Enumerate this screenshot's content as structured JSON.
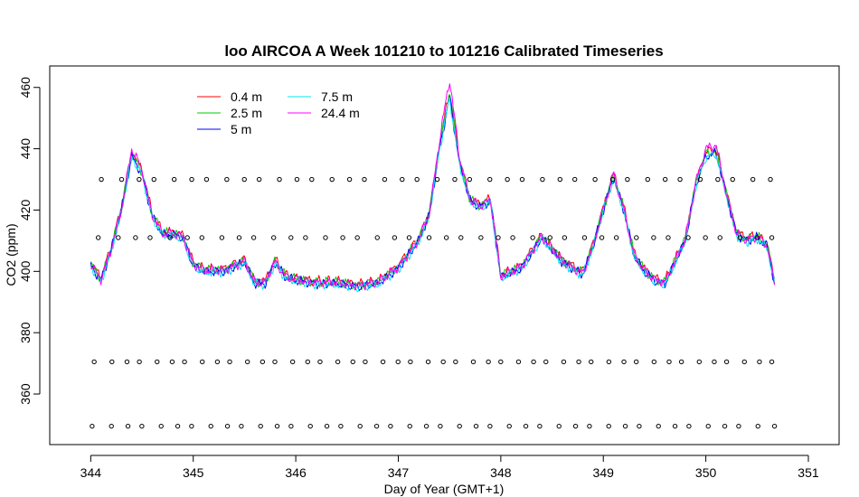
{
  "chart_data": {
    "type": "line",
    "title": "loo AIRCOA A  Week 101210 to 101216  Calibrated Timeseries",
    "xlabel": "Day of Year (GMT+1)",
    "ylabel": "CO2 (ppm)",
    "xlim": [
      343.6,
      351.3
    ],
    "ylim": [
      343.5,
      467
    ],
    "xticks": [
      344,
      345,
      346,
      347,
      348,
      349,
      350,
      351
    ],
    "yticks": [
      360,
      380,
      400,
      420,
      440,
      460
    ],
    "grid": false,
    "legend_position": "top-left",
    "series": [
      {
        "name": "0.4 m",
        "color": "#ff0000"
      },
      {
        "name": "2.5 m",
        "color": "#00cd00"
      },
      {
        "name": "5 m",
        "color": "#0000ff"
      },
      {
        "name": "7.5 m",
        "color": "#00e5ee"
      },
      {
        "name": "24.4 m",
        "color": "#ff00ff"
      }
    ],
    "base_x": [
      344.0,
      344.1,
      344.2,
      344.3,
      344.4,
      344.5,
      344.6,
      344.7,
      344.8,
      344.9,
      345.0,
      345.1,
      345.3,
      345.5,
      345.6,
      345.7,
      345.8,
      345.9,
      346.0,
      346.2,
      346.4,
      346.6,
      346.8,
      347.0,
      347.2,
      347.3,
      347.4,
      347.5,
      347.6,
      347.7,
      347.8,
      347.9,
      348.0,
      348.2,
      348.4,
      348.6,
      348.8,
      348.9,
      349.0,
      349.1,
      349.2,
      349.3,
      349.4,
      349.5,
      349.6,
      349.8,
      349.9,
      350.0,
      350.1,
      350.2,
      350.3,
      350.4,
      350.5,
      350.6,
      350.67
    ],
    "base_y": [
      402,
      397,
      407,
      420,
      438,
      432,
      418,
      412,
      412,
      411,
      402,
      400,
      400,
      403,
      396,
      396,
      403,
      398,
      397,
      396,
      396,
      395,
      396,
      401,
      410,
      418,
      440,
      458,
      435,
      423,
      421,
      423,
      398,
      401,
      411,
      403,
      399,
      408,
      420,
      431,
      420,
      405,
      400,
      397,
      396,
      410,
      428,
      438,
      439,
      425,
      412,
      410,
      411,
      408,
      396
    ],
    "marker_rows": [
      {
        "y": 430,
        "x_start": 344.13,
        "x_end": 350.63,
        "count": 39
      },
      {
        "y": 411,
        "x_start": 344.1,
        "x_end": 350.67,
        "count": 40
      },
      {
        "y": 370.5,
        "x_start": 344.06,
        "x_end": 350.67,
        "count": 46
      },
      {
        "y": 349.5,
        "x_start": 344.04,
        "x_end": 350.67,
        "count": 42
      }
    ]
  }
}
